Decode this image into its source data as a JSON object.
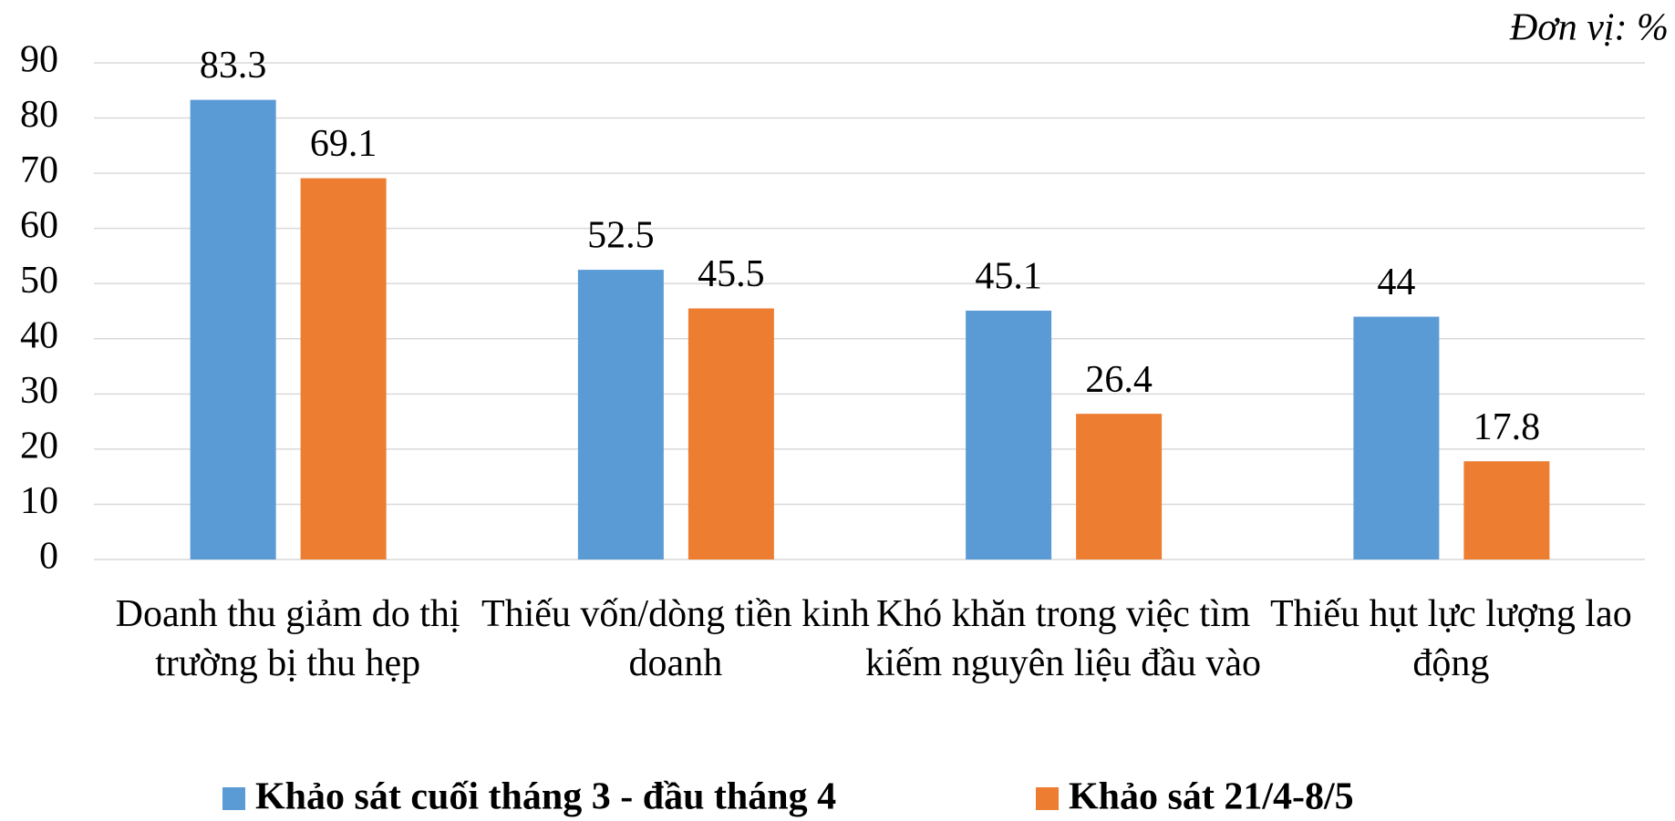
{
  "chart_data": {
    "type": "bar",
    "unit": "Đơn vị: %",
    "categories": [
      "Doanh thu giảm do thị trường bị thu hẹp",
      "Thiếu vốn/dòng tiền kinh doanh",
      "Khó khăn trong việc tìm kiếm nguyên liệu đầu vào",
      "Thiếu hụt lực lượng lao động"
    ],
    "series": [
      {
        "name": "Khảo sát cuối tháng 3 - đầu tháng 4",
        "color": "#5b9bd5",
        "values": [
          83.3,
          52.5,
          45.1,
          44
        ]
      },
      {
        "name": "Khảo sát 21/4-8/5",
        "color": "#ed7d31",
        "values": [
          69.1,
          45.5,
          26.4,
          17.8
        ]
      }
    ],
    "ylim": [
      0,
      90
    ],
    "yticks": [
      0,
      10,
      20,
      30,
      40,
      50,
      60,
      70,
      80,
      90
    ],
    "grid": true,
    "legend": "bottom"
  }
}
